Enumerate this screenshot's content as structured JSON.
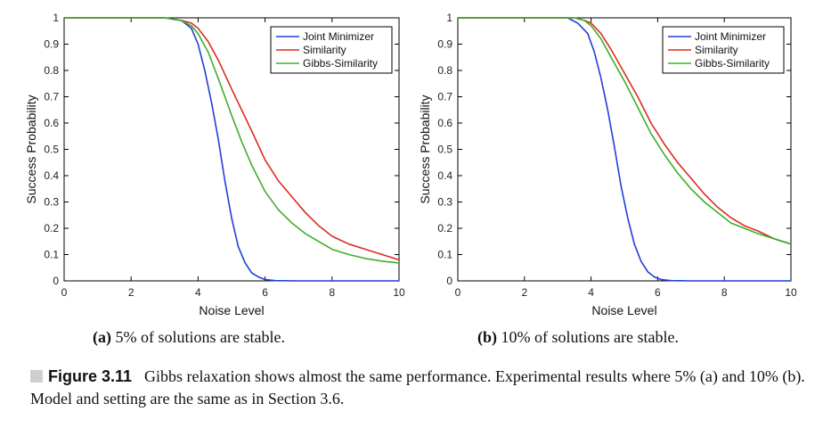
{
  "figure": {
    "subcaption_a": {
      "tag": "(a)",
      "text": "5% of solutions are stable."
    },
    "subcaption_b": {
      "tag": "(b)",
      "text": "10% of solutions are stable."
    },
    "caption_label": "Figure 3.11",
    "caption_text": "Gibbs relaxation shows almost the same performance. Experimental results where 5% (a) and 10% (b). Model and setting are the same as in Section 3.6."
  },
  "chart_data": [
    {
      "type": "line",
      "xlabel": "Noise Level",
      "ylabel": "Success Probability",
      "xlim": [
        0,
        10
      ],
      "ylim": [
        0,
        1
      ],
      "xticks": [
        0,
        2,
        4,
        6,
        8,
        10
      ],
      "yticks": [
        0,
        0.1,
        0.2,
        0.3,
        0.4,
        0.5,
        0.6,
        0.7,
        0.8,
        0.9,
        1
      ],
      "grid": false,
      "legend_position": "top-right",
      "series": [
        {
          "name": "Joint Minimizer",
          "color": "#1f3fd6",
          "x": [
            0,
            3.0,
            3.5,
            3.8,
            4.0,
            4.2,
            4.4,
            4.6,
            4.8,
            5.0,
            5.2,
            5.4,
            5.6,
            5.8,
            6.0,
            6.3,
            7.0,
            10
          ],
          "y": [
            1,
            1,
            0.99,
            0.96,
            0.9,
            0.8,
            0.68,
            0.54,
            0.38,
            0.24,
            0.13,
            0.07,
            0.03,
            0.015,
            0.005,
            0.001,
            0,
            0
          ]
        },
        {
          "name": "Similarity",
          "color": "#dd2a22",
          "x": [
            0,
            3.0,
            3.5,
            3.8,
            4.0,
            4.3,
            4.6,
            5.0,
            5.3,
            5.6,
            6.0,
            6.4,
            6.8,
            7.2,
            7.6,
            8.0,
            8.5,
            9.0,
            9.5,
            10
          ],
          "y": [
            1,
            1,
            0.99,
            0.98,
            0.96,
            0.91,
            0.84,
            0.73,
            0.65,
            0.57,
            0.46,
            0.38,
            0.32,
            0.26,
            0.21,
            0.17,
            0.14,
            0.12,
            0.1,
            0.08
          ]
        },
        {
          "name": "Gibbs-Similarity",
          "color": "#3fae2a",
          "x": [
            0,
            3.0,
            3.5,
            3.8,
            4.0,
            4.3,
            4.6,
            5.0,
            5.3,
            5.6,
            6.0,
            6.4,
            6.8,
            7.2,
            7.6,
            8.0,
            8.5,
            9.0,
            9.5,
            10
          ],
          "y": [
            1,
            1,
            0.99,
            0.97,
            0.94,
            0.87,
            0.77,
            0.63,
            0.53,
            0.44,
            0.34,
            0.27,
            0.22,
            0.18,
            0.15,
            0.12,
            0.1,
            0.085,
            0.075,
            0.068
          ]
        }
      ]
    },
    {
      "type": "line",
      "xlabel": "Noise Level",
      "ylabel": "Success Probability",
      "xlim": [
        0,
        10
      ],
      "ylim": [
        0,
        1
      ],
      "xticks": [
        0,
        2,
        4,
        6,
        8,
        10
      ],
      "yticks": [
        0,
        0.1,
        0.2,
        0.3,
        0.4,
        0.5,
        0.6,
        0.7,
        0.8,
        0.9,
        1
      ],
      "grid": false,
      "legend_position": "top-right",
      "series": [
        {
          "name": "Joint Minimizer",
          "color": "#1f3fd6",
          "x": [
            0,
            3.3,
            3.6,
            3.9,
            4.1,
            4.3,
            4.5,
            4.7,
            4.9,
            5.1,
            5.3,
            5.5,
            5.7,
            5.9,
            6.1,
            6.4,
            7.0,
            10
          ],
          "y": [
            1,
            1,
            0.98,
            0.94,
            0.87,
            0.77,
            0.65,
            0.51,
            0.36,
            0.24,
            0.14,
            0.075,
            0.035,
            0.015,
            0.005,
            0.001,
            0,
            0
          ]
        },
        {
          "name": "Similarity",
          "color": "#dd2a22",
          "x": [
            0,
            3.5,
            3.8,
            4.0,
            4.3,
            4.6,
            5.0,
            5.4,
            5.8,
            6.2,
            6.6,
            7.0,
            7.4,
            7.8,
            8.2,
            8.6,
            9.0,
            9.5,
            10
          ],
          "y": [
            1,
            1,
            0.99,
            0.98,
            0.94,
            0.88,
            0.79,
            0.7,
            0.6,
            0.52,
            0.45,
            0.39,
            0.33,
            0.28,
            0.24,
            0.21,
            0.19,
            0.16,
            0.14
          ]
        },
        {
          "name": "Gibbs-Similarity",
          "color": "#3fae2a",
          "x": [
            0,
            3.5,
            3.8,
            4.0,
            4.3,
            4.6,
            5.0,
            5.4,
            5.8,
            6.2,
            6.6,
            7.0,
            7.4,
            7.8,
            8.2,
            8.6,
            9.0,
            9.5,
            10
          ],
          "y": [
            1,
            1,
            0.99,
            0.97,
            0.92,
            0.85,
            0.76,
            0.66,
            0.56,
            0.48,
            0.41,
            0.35,
            0.3,
            0.26,
            0.22,
            0.2,
            0.18,
            0.16,
            0.14
          ]
        }
      ]
    }
  ]
}
